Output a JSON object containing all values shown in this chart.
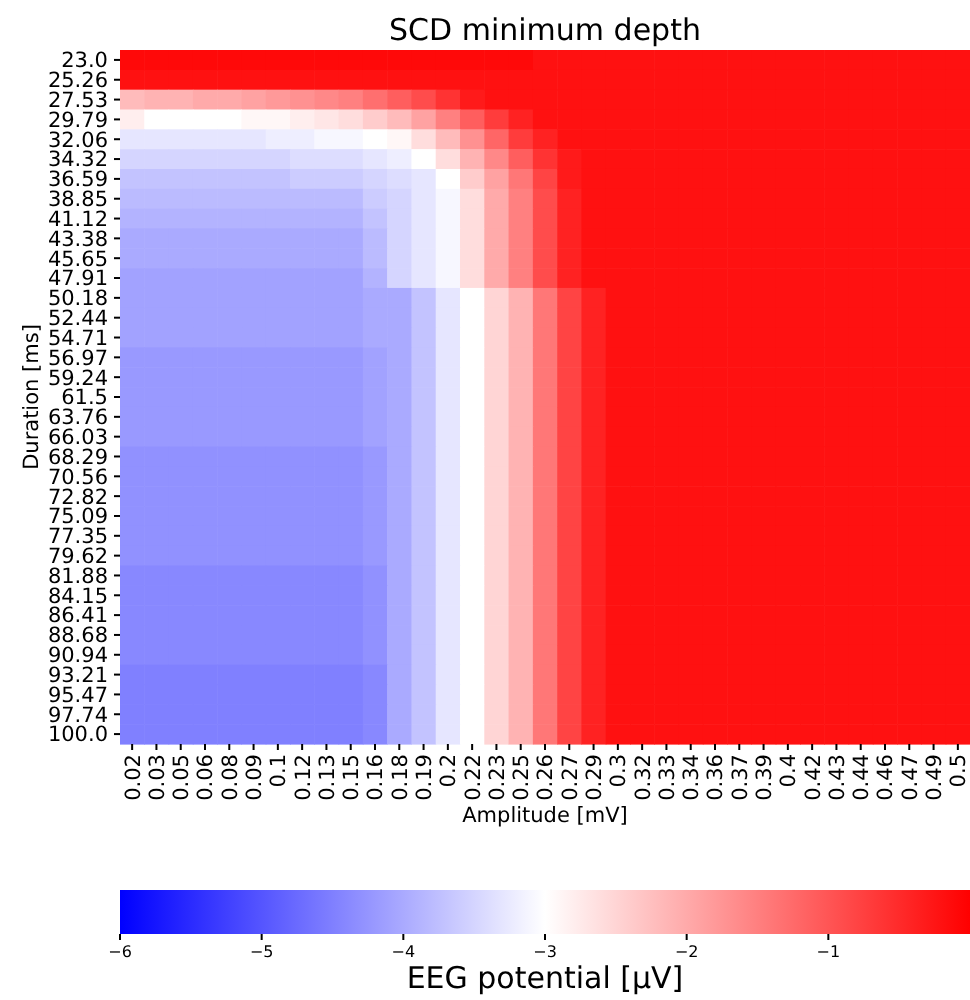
{
  "chart_data": {
    "type": "heatmap",
    "title": "SCD minimum depth",
    "xlabel": "Amplitude [mV]",
    "ylabel": "Duration [ms]",
    "clabel": "EEG potential [μV]",
    "categories": [
      "0.02",
      "0.03",
      "0.05",
      "0.06",
      "0.08",
      "0.09",
      "0.1",
      "0.12",
      "0.13",
      "0.15",
      "0.16",
      "0.18",
      "0.19",
      "0.2",
      "0.22",
      "0.23",
      "0.25",
      "0.26",
      "0.27",
      "0.29",
      "0.3",
      "0.32",
      "0.33",
      "0.34",
      "0.36",
      "0.37",
      "0.39",
      "0.4",
      "0.42",
      "0.43",
      "0.44",
      "0.46",
      "0.47",
      "0.49",
      "0.5"
    ],
    "y_categories": [
      "23.0",
      "25.26",
      "27.53",
      "29.79",
      "32.06",
      "34.32",
      "36.59",
      "38.85",
      "41.12",
      "43.38",
      "45.65",
      "47.91",
      "50.18",
      "52.44",
      "54.71",
      "56.97",
      "59.24",
      "61.5",
      "63.76",
      "66.03",
      "68.29",
      "70.56",
      "72.82",
      "75.09",
      "77.35",
      "79.62",
      "81.88",
      "84.15",
      "86.41",
      "88.68",
      "90.94",
      "93.21",
      "95.47",
      "97.74",
      "100.0"
    ],
    "clim": [
      -6,
      0
    ],
    "cticks": [
      {
        "value": -6,
        "label": "−6"
      },
      {
        "value": -5,
        "label": "−5"
      },
      {
        "value": -4,
        "label": "−4"
      },
      {
        "value": -3,
        "label": "−3"
      },
      {
        "value": -2,
        "label": "−2"
      },
      {
        "value": -1,
        "label": "−1"
      }
    ],
    "cells": [
      [
        -0.1,
        -0.1,
        -0.1,
        -0.1,
        -0.1,
        -0.1,
        -0.1,
        -0.1,
        -0.1,
        -0.1,
        -0.1,
        -0.1,
        -0.1,
        -0.1,
        -0.1,
        -0.1,
        -0.1,
        -0.2,
        -0.2,
        -0.2,
        -0.2,
        -0.2,
        -0.2,
        -0.2,
        -0.2,
        -0.2,
        -0.2,
        -0.2,
        -0.2,
        -0.2,
        -0.2,
        -0.2,
        -0.2,
        -0.2,
        -0.2
      ],
      [
        -0.2,
        -0.2,
        -0.2,
        -0.2,
        -0.2,
        -0.2,
        -0.2,
        -0.2,
        -0.2,
        -0.2,
        -0.2,
        -0.2,
        -0.2,
        -0.2,
        -0.2,
        -0.2,
        -0.2,
        -0.2,
        -0.2,
        -0.2,
        -0.2,
        -0.2,
        -0.2,
        -0.2,
        -0.2,
        -0.2,
        -0.2,
        -0.2,
        -0.2,
        -0.2,
        -0.2,
        -0.2,
        -0.2,
        -0.2,
        -0.2
      ],
      [
        -2.2,
        -2.1,
        -2.1,
        -2.0,
        -2.0,
        -1.9,
        -1.8,
        -1.7,
        -1.6,
        -1.5,
        -1.3,
        -1.1,
        -0.9,
        -0.6,
        -0.3,
        -0.2,
        -0.2,
        -0.2,
        -0.2,
        -0.2,
        -0.2,
        -0.2,
        -0.2,
        -0.2,
        -0.2,
        -0.2,
        -0.2,
        -0.2,
        -0.2,
        -0.2,
        -0.2,
        -0.2,
        -0.2,
        -0.2,
        -0.2
      ],
      [
        -2.8,
        -3.0,
        -3.0,
        -3.0,
        -3.0,
        -2.9,
        -2.9,
        -2.8,
        -2.7,
        -2.6,
        -2.4,
        -2.2,
        -1.9,
        -1.5,
        -1.1,
        -0.7,
        -0.4,
        -0.2,
        -0.2,
        -0.2,
        -0.2,
        -0.2,
        -0.2,
        -0.2,
        -0.2,
        -0.2,
        -0.2,
        -0.2,
        -0.2,
        -0.2,
        -0.2,
        -0.2,
        -0.2,
        -0.2,
        -0.2
      ],
      [
        -3.3,
        -3.3,
        -3.3,
        -3.3,
        -3.3,
        -3.3,
        -3.2,
        -3.2,
        -3.1,
        -3.1,
        -3.0,
        -2.9,
        -2.6,
        -2.2,
        -1.7,
        -1.2,
        -0.7,
        -0.4,
        -0.2,
        -0.2,
        -0.2,
        -0.2,
        -0.2,
        -0.2,
        -0.2,
        -0.2,
        -0.2,
        -0.2,
        -0.2,
        -0.2,
        -0.2,
        -0.2,
        -0.2,
        -0.2,
        -0.2
      ],
      [
        -3.5,
        -3.5,
        -3.5,
        -3.5,
        -3.5,
        -3.5,
        -3.5,
        -3.4,
        -3.4,
        -3.4,
        -3.3,
        -3.2,
        -3.0,
        -2.6,
        -2.1,
        -1.6,
        -1.1,
        -0.6,
        -0.3,
        -0.2,
        -0.2,
        -0.2,
        -0.2,
        -0.2,
        -0.2,
        -0.2,
        -0.2,
        -0.2,
        -0.2,
        -0.2,
        -0.2,
        -0.2,
        -0.2,
        -0.2,
        -0.2
      ],
      [
        -3.7,
        -3.7,
        -3.7,
        -3.7,
        -3.7,
        -3.7,
        -3.7,
        -3.6,
        -3.6,
        -3.6,
        -3.5,
        -3.4,
        -3.3,
        -3.0,
        -2.4,
        -1.9,
        -1.4,
        -0.8,
        -0.3,
        -0.2,
        -0.2,
        -0.2,
        -0.2,
        -0.2,
        -0.2,
        -0.2,
        -0.2,
        -0.2,
        -0.2,
        -0.2,
        -0.2,
        -0.2,
        -0.2,
        -0.2,
        -0.2
      ],
      [
        -3.8,
        -3.8,
        -3.8,
        -3.8,
        -3.8,
        -3.8,
        -3.8,
        -3.8,
        -3.8,
        -3.8,
        -3.6,
        -3.5,
        -3.3,
        -3.1,
        -2.6,
        -2.0,
        -1.5,
        -0.9,
        -0.4,
        -0.2,
        -0.2,
        -0.2,
        -0.2,
        -0.2,
        -0.2,
        -0.2,
        -0.2,
        -0.2,
        -0.2,
        -0.2,
        -0.2,
        -0.2,
        -0.2,
        -0.2,
        -0.2
      ],
      [
        -3.9,
        -3.9,
        -3.9,
        -3.9,
        -3.9,
        -3.9,
        -3.9,
        -3.9,
        -3.9,
        -3.9,
        -3.7,
        -3.5,
        -3.3,
        -3.1,
        -2.6,
        -2.0,
        -1.5,
        -0.9,
        -0.4,
        -0.2,
        -0.2,
        -0.2,
        -0.2,
        -0.2,
        -0.2,
        -0.2,
        -0.2,
        -0.2,
        -0.2,
        -0.2,
        -0.2,
        -0.2,
        -0.2,
        -0.2,
        -0.2
      ],
      [
        -4.0,
        -4.0,
        -4.0,
        -4.0,
        -4.0,
        -4.0,
        -4.0,
        -4.0,
        -4.0,
        -4.0,
        -3.8,
        -3.5,
        -3.3,
        -3.1,
        -2.6,
        -2.0,
        -1.5,
        -0.9,
        -0.4,
        -0.2,
        -0.2,
        -0.2,
        -0.2,
        -0.2,
        -0.2,
        -0.2,
        -0.2,
        -0.2,
        -0.2,
        -0.2,
        -0.2,
        -0.2,
        -0.2,
        -0.2,
        -0.2
      ],
      [
        -4.0,
        -4.0,
        -4.0,
        -4.0,
        -4.0,
        -4.0,
        -4.0,
        -4.0,
        -4.0,
        -4.0,
        -3.8,
        -3.5,
        -3.3,
        -3.1,
        -2.6,
        -2.0,
        -1.5,
        -0.9,
        -0.4,
        -0.2,
        -0.2,
        -0.2,
        -0.2,
        -0.2,
        -0.2,
        -0.2,
        -0.2,
        -0.2,
        -0.2,
        -0.2,
        -0.2,
        -0.2,
        -0.2,
        -0.2,
        -0.2
      ],
      [
        -4.1,
        -4.1,
        -4.1,
        -4.1,
        -4.1,
        -4.1,
        -4.1,
        -4.1,
        -4.1,
        -4.1,
        -3.9,
        -3.5,
        -3.3,
        -3.1,
        -2.6,
        -2.0,
        -1.5,
        -0.9,
        -0.4,
        -0.2,
        -0.2,
        -0.2,
        -0.2,
        -0.2,
        -0.2,
        -0.2,
        -0.2,
        -0.2,
        -0.2,
        -0.2,
        -0.2,
        -0.2,
        -0.2,
        -0.2,
        -0.2
      ],
      [
        -4.1,
        -4.1,
        -4.1,
        -4.1,
        -4.1,
        -4.1,
        -4.1,
        -4.1,
        -4.1,
        -4.1,
        -4.0,
        -4.0,
        -3.7,
        -3.3,
        -3.0,
        -2.5,
        -2.1,
        -1.4,
        -0.8,
        -0.4,
        -0.2,
        -0.2,
        -0.2,
        -0.2,
        -0.2,
        -0.2,
        -0.2,
        -0.2,
        -0.2,
        -0.2,
        -0.2,
        -0.2,
        -0.2,
        -0.2,
        -0.2
      ],
      [
        -4.1,
        -4.1,
        -4.1,
        -4.1,
        -4.1,
        -4.1,
        -4.1,
        -4.1,
        -4.1,
        -4.1,
        -4.0,
        -4.0,
        -3.7,
        -3.3,
        -3.0,
        -2.5,
        -2.1,
        -1.4,
        -0.8,
        -0.4,
        -0.2,
        -0.2,
        -0.2,
        -0.2,
        -0.2,
        -0.2,
        -0.2,
        -0.2,
        -0.2,
        -0.2,
        -0.2,
        -0.2,
        -0.2,
        -0.2,
        -0.2
      ],
      [
        -4.1,
        -4.1,
        -4.1,
        -4.1,
        -4.1,
        -4.1,
        -4.1,
        -4.1,
        -4.1,
        -4.1,
        -4.0,
        -4.0,
        -3.7,
        -3.3,
        -3.0,
        -2.5,
        -2.1,
        -1.4,
        -0.8,
        -0.4,
        -0.2,
        -0.2,
        -0.2,
        -0.2,
        -0.2,
        -0.2,
        -0.2,
        -0.2,
        -0.2,
        -0.2,
        -0.2,
        -0.2,
        -0.2,
        -0.2,
        -0.2
      ],
      [
        -4.2,
        -4.2,
        -4.2,
        -4.2,
        -4.2,
        -4.2,
        -4.2,
        -4.2,
        -4.2,
        -4.2,
        -4.1,
        -4.0,
        -3.7,
        -3.3,
        -3.0,
        -2.5,
        -2.1,
        -1.4,
        -0.8,
        -0.4,
        -0.2,
        -0.2,
        -0.2,
        -0.2,
        -0.2,
        -0.2,
        -0.2,
        -0.2,
        -0.2,
        -0.2,
        -0.2,
        -0.2,
        -0.2,
        -0.2,
        -0.2
      ],
      [
        -4.2,
        -4.2,
        -4.2,
        -4.2,
        -4.2,
        -4.2,
        -4.2,
        -4.2,
        -4.2,
        -4.2,
        -4.1,
        -4.0,
        -3.7,
        -3.3,
        -3.0,
        -2.5,
        -2.1,
        -1.4,
        -0.8,
        -0.4,
        -0.2,
        -0.2,
        -0.2,
        -0.2,
        -0.2,
        -0.2,
        -0.2,
        -0.2,
        -0.2,
        -0.2,
        -0.2,
        -0.2,
        -0.2,
        -0.2,
        -0.2
      ],
      [
        -4.2,
        -4.2,
        -4.2,
        -4.2,
        -4.2,
        -4.2,
        -4.2,
        -4.2,
        -4.2,
        -4.2,
        -4.1,
        -4.0,
        -3.7,
        -3.3,
        -3.0,
        -2.5,
        -2.1,
        -1.4,
        -0.8,
        -0.4,
        -0.2,
        -0.2,
        -0.2,
        -0.2,
        -0.2,
        -0.2,
        -0.2,
        -0.2,
        -0.2,
        -0.2,
        -0.2,
        -0.2,
        -0.2,
        -0.2,
        -0.2
      ],
      [
        -4.2,
        -4.2,
        -4.2,
        -4.2,
        -4.2,
        -4.2,
        -4.2,
        -4.2,
        -4.2,
        -4.2,
        -4.1,
        -4.0,
        -3.7,
        -3.3,
        -3.0,
        -2.5,
        -2.1,
        -1.4,
        -0.8,
        -0.4,
        -0.2,
        -0.2,
        -0.2,
        -0.2,
        -0.2,
        -0.2,
        -0.2,
        -0.2,
        -0.2,
        -0.2,
        -0.2,
        -0.2,
        -0.2,
        -0.2,
        -0.2
      ],
      [
        -4.2,
        -4.2,
        -4.2,
        -4.2,
        -4.2,
        -4.2,
        -4.2,
        -4.2,
        -4.2,
        -4.2,
        -4.1,
        -4.0,
        -3.7,
        -3.3,
        -3.0,
        -2.5,
        -2.1,
        -1.4,
        -0.8,
        -0.4,
        -0.2,
        -0.2,
        -0.2,
        -0.2,
        -0.2,
        -0.2,
        -0.2,
        -0.2,
        -0.2,
        -0.2,
        -0.2,
        -0.2,
        -0.2,
        -0.2,
        -0.2
      ],
      [
        -4.3,
        -4.3,
        -4.3,
        -4.3,
        -4.3,
        -4.3,
        -4.3,
        -4.3,
        -4.3,
        -4.3,
        -4.2,
        -4.0,
        -3.7,
        -3.3,
        -3.0,
        -2.5,
        -2.1,
        -1.4,
        -0.8,
        -0.4,
        -0.2,
        -0.2,
        -0.2,
        -0.2,
        -0.2,
        -0.2,
        -0.2,
        -0.2,
        -0.2,
        -0.2,
        -0.2,
        -0.2,
        -0.2,
        -0.2,
        -0.2
      ],
      [
        -4.3,
        -4.3,
        -4.3,
        -4.3,
        -4.3,
        -4.3,
        -4.3,
        -4.3,
        -4.3,
        -4.3,
        -4.2,
        -4.0,
        -3.7,
        -3.3,
        -3.0,
        -2.5,
        -2.1,
        -1.4,
        -0.8,
        -0.4,
        -0.2,
        -0.2,
        -0.2,
        -0.2,
        -0.2,
        -0.2,
        -0.2,
        -0.2,
        -0.2,
        -0.2,
        -0.2,
        -0.2,
        -0.2,
        -0.2,
        -0.2
      ],
      [
        -4.3,
        -4.3,
        -4.3,
        -4.3,
        -4.3,
        -4.3,
        -4.3,
        -4.3,
        -4.3,
        -4.3,
        -4.2,
        -4.0,
        -3.7,
        -3.3,
        -3.0,
        -2.5,
        -2.1,
        -1.4,
        -0.8,
        -0.4,
        -0.2,
        -0.2,
        -0.2,
        -0.2,
        -0.2,
        -0.2,
        -0.2,
        -0.2,
        -0.2,
        -0.2,
        -0.2,
        -0.2,
        -0.2,
        -0.2,
        -0.2
      ],
      [
        -4.3,
        -4.3,
        -4.3,
        -4.3,
        -4.3,
        -4.3,
        -4.3,
        -4.3,
        -4.3,
        -4.3,
        -4.2,
        -4.0,
        -3.7,
        -3.3,
        -3.0,
        -2.5,
        -2.1,
        -1.4,
        -0.8,
        -0.4,
        -0.2,
        -0.2,
        -0.2,
        -0.2,
        -0.2,
        -0.2,
        -0.2,
        -0.2,
        -0.2,
        -0.2,
        -0.2,
        -0.2,
        -0.2,
        -0.2,
        -0.2
      ],
      [
        -4.3,
        -4.3,
        -4.3,
        -4.3,
        -4.3,
        -4.3,
        -4.3,
        -4.3,
        -4.3,
        -4.3,
        -4.2,
        -4.0,
        -3.7,
        -3.3,
        -3.0,
        -2.5,
        -2.1,
        -1.4,
        -0.8,
        -0.4,
        -0.2,
        -0.2,
        -0.2,
        -0.2,
        -0.2,
        -0.2,
        -0.2,
        -0.2,
        -0.2,
        -0.2,
        -0.2,
        -0.2,
        -0.2,
        -0.2,
        -0.2
      ],
      [
        -4.3,
        -4.3,
        -4.3,
        -4.3,
        -4.3,
        -4.3,
        -4.3,
        -4.3,
        -4.3,
        -4.3,
        -4.2,
        -4.0,
        -3.7,
        -3.3,
        -3.0,
        -2.5,
        -2.1,
        -1.4,
        -0.8,
        -0.4,
        -0.2,
        -0.2,
        -0.2,
        -0.2,
        -0.2,
        -0.2,
        -0.2,
        -0.2,
        -0.2,
        -0.2,
        -0.2,
        -0.2,
        -0.2,
        -0.2,
        -0.2
      ],
      [
        -4.4,
        -4.4,
        -4.4,
        -4.4,
        -4.4,
        -4.4,
        -4.4,
        -4.4,
        -4.4,
        -4.4,
        -4.3,
        -4.0,
        -3.7,
        -3.3,
        -3.0,
        -2.5,
        -2.1,
        -1.4,
        -0.8,
        -0.4,
        -0.2,
        -0.2,
        -0.2,
        -0.2,
        -0.2,
        -0.2,
        -0.2,
        -0.2,
        -0.2,
        -0.2,
        -0.2,
        -0.2,
        -0.2,
        -0.2,
        -0.2
      ],
      [
        -4.4,
        -4.4,
        -4.4,
        -4.4,
        -4.4,
        -4.4,
        -4.4,
        -4.4,
        -4.4,
        -4.4,
        -4.3,
        -4.0,
        -3.7,
        -3.3,
        -3.0,
        -2.5,
        -2.1,
        -1.4,
        -0.8,
        -0.4,
        -0.2,
        -0.2,
        -0.2,
        -0.2,
        -0.2,
        -0.2,
        -0.2,
        -0.2,
        -0.2,
        -0.2,
        -0.2,
        -0.2,
        -0.2,
        -0.2,
        -0.2
      ],
      [
        -4.4,
        -4.4,
        -4.4,
        -4.4,
        -4.4,
        -4.4,
        -4.4,
        -4.4,
        -4.4,
        -4.4,
        -4.3,
        -4.0,
        -3.7,
        -3.3,
        -3.0,
        -2.5,
        -2.1,
        -1.4,
        -0.8,
        -0.4,
        -0.2,
        -0.2,
        -0.2,
        -0.2,
        -0.2,
        -0.2,
        -0.2,
        -0.2,
        -0.2,
        -0.2,
        -0.2,
        -0.2,
        -0.2,
        -0.2,
        -0.2
      ],
      [
        -4.4,
        -4.4,
        -4.4,
        -4.4,
        -4.4,
        -4.4,
        -4.4,
        -4.4,
        -4.4,
        -4.4,
        -4.3,
        -4.0,
        -3.7,
        -3.3,
        -3.0,
        -2.5,
        -2.1,
        -1.4,
        -0.8,
        -0.4,
        -0.2,
        -0.2,
        -0.2,
        -0.2,
        -0.2,
        -0.2,
        -0.2,
        -0.2,
        -0.2,
        -0.2,
        -0.2,
        -0.2,
        -0.2,
        -0.2,
        -0.2
      ],
      [
        -4.4,
        -4.4,
        -4.4,
        -4.4,
        -4.4,
        -4.4,
        -4.4,
        -4.4,
        -4.4,
        -4.4,
        -4.3,
        -4.0,
        -3.7,
        -3.3,
        -3.0,
        -2.5,
        -2.1,
        -1.4,
        -0.8,
        -0.4,
        -0.2,
        -0.2,
        -0.2,
        -0.2,
        -0.2,
        -0.2,
        -0.2,
        -0.2,
        -0.2,
        -0.2,
        -0.2,
        -0.2,
        -0.2,
        -0.2,
        -0.2
      ],
      [
        -4.5,
        -4.5,
        -4.5,
        -4.5,
        -4.5,
        -4.5,
        -4.5,
        -4.5,
        -4.5,
        -4.5,
        -4.4,
        -4.0,
        -3.7,
        -3.3,
        -3.0,
        -2.5,
        -2.1,
        -1.4,
        -0.8,
        -0.4,
        -0.2,
        -0.2,
        -0.2,
        -0.2,
        -0.2,
        -0.2,
        -0.2,
        -0.2,
        -0.2,
        -0.2,
        -0.2,
        -0.2,
        -0.2,
        -0.2,
        -0.2
      ],
      [
        -4.5,
        -4.5,
        -4.5,
        -4.5,
        -4.5,
        -4.5,
        -4.5,
        -4.5,
        -4.5,
        -4.5,
        -4.4,
        -4.0,
        -3.7,
        -3.3,
        -3.0,
        -2.5,
        -2.1,
        -1.4,
        -0.8,
        -0.4,
        -0.2,
        -0.2,
        -0.2,
        -0.2,
        -0.2,
        -0.2,
        -0.2,
        -0.2,
        -0.2,
        -0.2,
        -0.2,
        -0.2,
        -0.2,
        -0.2,
        -0.2
      ],
      [
        -4.5,
        -4.5,
        -4.5,
        -4.5,
        -4.5,
        -4.5,
        -4.5,
        -4.5,
        -4.5,
        -4.5,
        -4.4,
        -4.0,
        -3.7,
        -3.3,
        -3.0,
        -2.5,
        -2.1,
        -1.4,
        -0.8,
        -0.4,
        -0.2,
        -0.2,
        -0.2,
        -0.2,
        -0.2,
        -0.2,
        -0.2,
        -0.2,
        -0.2,
        -0.2,
        -0.2,
        -0.2,
        -0.2,
        -0.2,
        -0.2
      ],
      [
        -4.5,
        -4.5,
        -4.5,
        -4.5,
        -4.5,
        -4.5,
        -4.5,
        -4.5,
        -4.5,
        -4.5,
        -4.4,
        -4.0,
        -3.7,
        -3.3,
        -3.0,
        -2.5,
        -2.1,
        -1.4,
        -0.8,
        -0.4,
        -0.2,
        -0.2,
        -0.2,
        -0.2,
        -0.2,
        -0.2,
        -0.2,
        -0.2,
        -0.2,
        -0.2,
        -0.2,
        -0.2,
        -0.2,
        -0.2,
        -0.2
      ]
    ]
  }
}
